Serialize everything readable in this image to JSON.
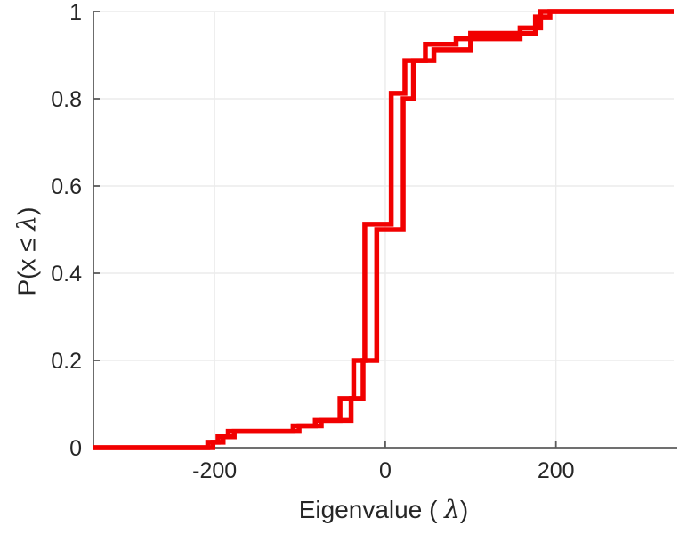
{
  "figure": {
    "background_color": "#ffffff"
  },
  "chart_data": {
    "type": "line",
    "subtype": "empirical-cdf-staircase",
    "title": "",
    "xlabel": {
      "prefix": "Eigenvalue ( ",
      "symbol": "λ",
      "suffix": ")"
    },
    "ylabel": {
      "prefix": "P(x ≤ ",
      "symbol": "λ",
      "suffix": ")"
    },
    "xlim": [
      -342,
      338
    ],
    "ylim": [
      0,
      1
    ],
    "x_ticks": [
      {
        "v": -200,
        "label": "-200"
      },
      {
        "v": 0,
        "label": "0"
      },
      {
        "v": 200,
        "label": "200"
      }
    ],
    "y_ticks": [
      {
        "v": 0,
        "label": "0"
      },
      {
        "v": 0.2,
        "label": "0.2"
      },
      {
        "v": 0.4,
        "label": "0.4"
      },
      {
        "v": 0.6,
        "label": "0.6"
      },
      {
        "v": 0.8,
        "label": "0.8"
      },
      {
        "v": 1,
        "label": "1"
      }
    ],
    "grid": true,
    "legend": null,
    "line_color": "#f10000",
    "line_width": 5.5,
    "axis_color": "#5b5b5b",
    "grid_color": "#ebebeb",
    "tick_label_color": "#262626",
    "series": [
      {
        "name": "ecdf-curve-1",
        "color": "#f10000",
        "start_x": -342,
        "start_p": 0,
        "end_x": 338,
        "steps": [
          [
            -208,
            0.0125
          ],
          [
            -196,
            0.025
          ],
          [
            -184,
            0.0375
          ],
          [
            -108,
            0.05
          ],
          [
            -82,
            0.0625
          ],
          [
            -53,
            0.1125
          ],
          [
            -37,
            0.2
          ],
          [
            -24,
            0.5125
          ],
          [
            7,
            0.8125
          ],
          [
            23,
            0.8875
          ],
          [
            47,
            0.925
          ],
          [
            83,
            0.9375
          ],
          [
            158,
            0.9625
          ],
          [
            182,
            1.0
          ]
        ]
      },
      {
        "name": "ecdf-curve-2",
        "color": "#f10000",
        "start_x": -342,
        "start_p": 0,
        "end_x": 338,
        "steps": [
          [
            -202,
            0.0125
          ],
          [
            -190,
            0.025
          ],
          [
            -177,
            0.0375
          ],
          [
            -101,
            0.05
          ],
          [
            -75,
            0.0625
          ],
          [
            -40,
            0.1125
          ],
          [
            -26,
            0.2
          ],
          [
            -10,
            0.5
          ],
          [
            21,
            0.8
          ],
          [
            33,
            0.8875
          ],
          [
            57,
            0.9125
          ],
          [
            100,
            0.95
          ],
          [
            176,
            0.9875
          ],
          [
            193,
            1.0
          ]
        ]
      }
    ]
  }
}
